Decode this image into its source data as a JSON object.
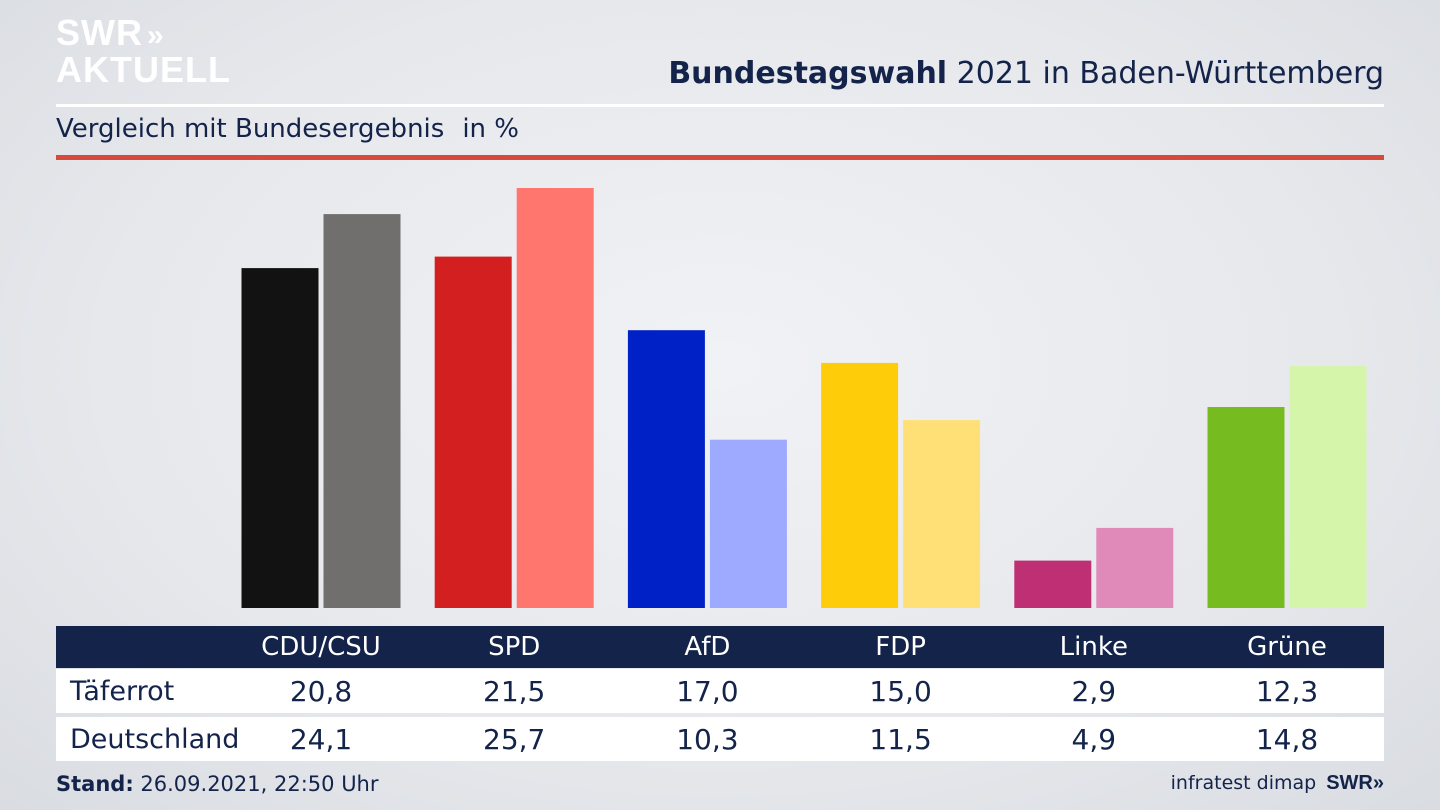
{
  "branding": {
    "logo_line1": "SWR",
    "logo_arrows": "»",
    "logo_line2": "AKTUELL",
    "footer_source": "infratest dimap",
    "footer_logo": "SWR»"
  },
  "header": {
    "title_bold": "Bundestagswahl",
    "title_rest": "2021 in Baden-Württemberg",
    "subtitle": "Vergleich mit Bundesergebnis",
    "unit": "in %"
  },
  "footer": {
    "stand_label": "Stand:",
    "stand_value": "26.09.2021, 22:50 Uhr"
  },
  "chart_data": {
    "type": "bar",
    "title": "Bundestagswahl 2021 in Baden-Württemberg",
    "subtitle": "Vergleich mit Bundesergebnis",
    "unit": "in %",
    "categories": [
      "CDU/CSU",
      "SPD",
      "AfD",
      "FDP",
      "Linke",
      "Grüne"
    ],
    "series": [
      {
        "name": "Täferrot",
        "values": [
          20.8,
          21.5,
          17.0,
          15.0,
          2.9,
          12.3
        ],
        "labels": [
          "20,8",
          "21,5",
          "17,0",
          "15,0",
          "2,9",
          "12,3"
        ],
        "colors": [
          "#121212",
          "#d41f21",
          "#0021c6",
          "#ffcc0a",
          "#bf2f74",
          "#76bb20"
        ]
      },
      {
        "name": "Deutschland",
        "values": [
          24.1,
          25.7,
          10.3,
          11.5,
          4.9,
          14.8
        ],
        "labels": [
          "24,1",
          "25,7",
          "10,3",
          "11,5",
          "4,9",
          "14,8"
        ],
        "colors": [
          "#706f6d",
          "#fe766e",
          "#9eaaff",
          "#fee077",
          "#e08ab9",
          "#d5f6aa"
        ]
      }
    ],
    "ylim": [
      0,
      25.7
    ],
    "grid": false,
    "legend": "table-below"
  }
}
